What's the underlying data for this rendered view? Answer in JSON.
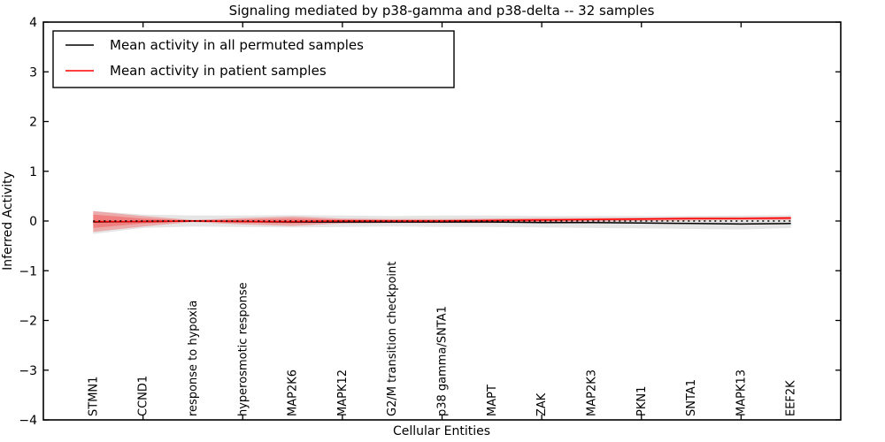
{
  "title": "Signaling mediated by p38-gamma and p38-delta -- 32 samples",
  "axes": {
    "ylabel": "Inferred Activity",
    "xlabel": "Cellular Entities"
  },
  "legend": {
    "entries": [
      {
        "label": "Mean activity in all permuted samples",
        "color": "#000000"
      },
      {
        "label": "Mean activity in patient samples",
        "color": "#ff0000"
      }
    ]
  },
  "chart_data": {
    "type": "line",
    "title": "Signaling mediated by p38-gamma and p38-delta -- 32 samples",
    "xlabel": "Cellular Entities",
    "ylabel": "Inferred Activity",
    "ylim": [
      -4,
      4
    ],
    "xlim": [
      0,
      16
    ],
    "yticks": [
      -4,
      -3,
      -2,
      -1,
      0,
      1,
      2,
      3,
      4
    ],
    "xticks": [
      2,
      4,
      6,
      8,
      10,
      12,
      14
    ],
    "grid": false,
    "legend_position": "upper left",
    "categories": [
      "STMN1",
      "CCND1",
      "response to hypoxia",
      "hyperosmotic response",
      "MAP2K6",
      "MAPK12",
      "G2/M transition checkpoint",
      "p38 gamma/SNTA1",
      "MAPT",
      "ZAK",
      "MAP2K3",
      "PKN1",
      "SNTA1",
      "MAPK13",
      "EEF2K"
    ],
    "series": [
      {
        "name": "Mean activity in all permuted samples",
        "color": "#000000",
        "style": "solid",
        "values": [
          -0.02,
          -0.01,
          0.0,
          -0.01,
          -0.02,
          -0.02,
          -0.02,
          -0.02,
          -0.02,
          -0.03,
          -0.03,
          -0.04,
          -0.05,
          -0.06,
          -0.05
        ],
        "band_upper": [
          0.2,
          0.13,
          0.11,
          0.11,
          0.12,
          0.11,
          0.1,
          0.11,
          0.11,
          0.1,
          0.1,
          0.1,
          0.1,
          0.11,
          0.12
        ],
        "band_lower": [
          -0.26,
          -0.14,
          -0.11,
          -0.12,
          -0.13,
          -0.12,
          -0.11,
          -0.12,
          -0.12,
          -0.13,
          -0.14,
          -0.15,
          -0.16,
          -0.17,
          -0.14
        ],
        "band_color": "rgba(0,0,0,0.10)"
      },
      {
        "name": "Mean activity in patient samples",
        "color": "#ff0000",
        "style": "solid",
        "values": [
          -0.01,
          -0.01,
          0.0,
          -0.01,
          -0.01,
          0.0,
          0.0,
          0.0,
          0.01,
          0.02,
          0.03,
          0.04,
          0.05,
          0.05,
          0.06
        ],
        "band_upper": [
          0.2,
          0.1,
          0.02,
          0.06,
          0.09,
          0.05,
          0.04,
          0.04,
          0.05,
          0.06,
          0.06,
          0.07,
          0.08,
          0.08,
          0.09
        ],
        "band_lower": [
          -0.22,
          -0.11,
          -0.02,
          -0.07,
          -0.1,
          -0.05,
          -0.04,
          -0.04,
          -0.04,
          -0.03,
          -0.01,
          0.0,
          0.01,
          0.02,
          0.02
        ],
        "inner_band_upper": [
          0.13,
          0.05,
          0.01,
          0.03,
          0.05,
          0.03,
          0.02,
          0.02,
          0.03,
          0.04,
          0.04,
          0.05,
          0.06,
          0.06,
          0.07
        ],
        "inner_band_lower": [
          -0.14,
          -0.05,
          -0.01,
          -0.03,
          -0.05,
          -0.03,
          -0.02,
          -0.02,
          -0.02,
          -0.01,
          0.01,
          0.02,
          0.03,
          0.04,
          0.04
        ],
        "band_color": "rgba(255,0,0,0.25)"
      },
      {
        "name": "zero reference",
        "color": "#000000",
        "style": "dotted",
        "values": [
          0,
          0,
          0,
          0,
          0,
          0,
          0,
          0,
          0,
          0,
          0,
          0,
          0,
          0,
          0
        ]
      }
    ]
  }
}
